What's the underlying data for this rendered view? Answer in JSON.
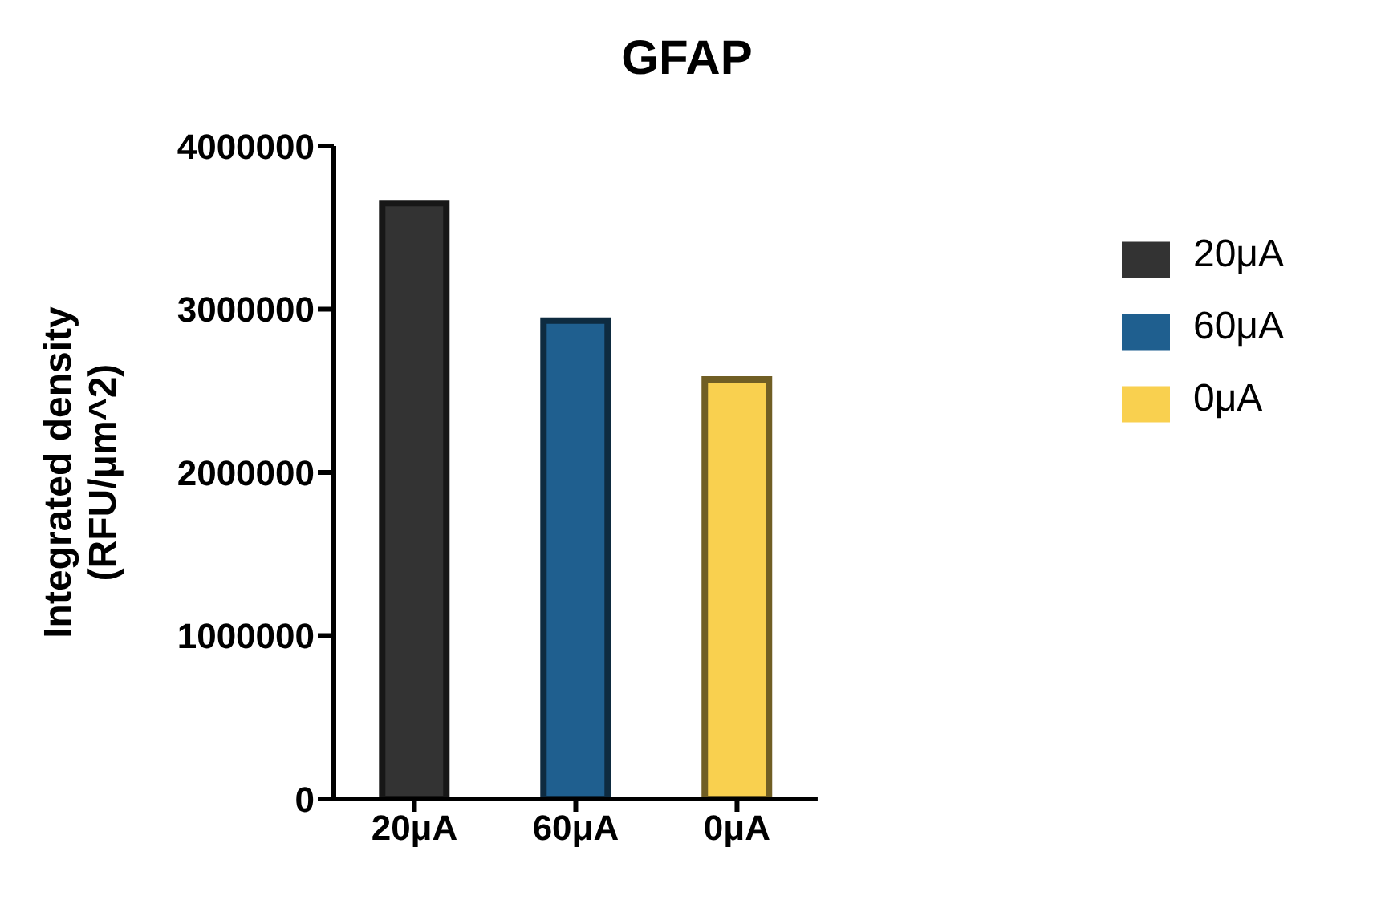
{
  "chart_data": {
    "type": "bar",
    "title": "GFAP",
    "ylabel": "Integrated density\n(RFU/μm^2)",
    "categories": [
      "20μA",
      "60μA",
      "0μA"
    ],
    "series": [
      {
        "name": "20μA",
        "color": "#333333",
        "values": [
          3650000,
          null,
          null
        ]
      },
      {
        "name": "60μA",
        "color": "#1f5f8f",
        "values": [
          null,
          2930000,
          null
        ]
      },
      {
        "name": "0μA",
        "color": "#f9d04f",
        "values": [
          null,
          null,
          2570000
        ]
      }
    ],
    "ylim": [
      0,
      4000000
    ],
    "yticks": [
      0,
      1000000,
      2000000,
      3000000,
      4000000
    ],
    "legend": "right"
  }
}
